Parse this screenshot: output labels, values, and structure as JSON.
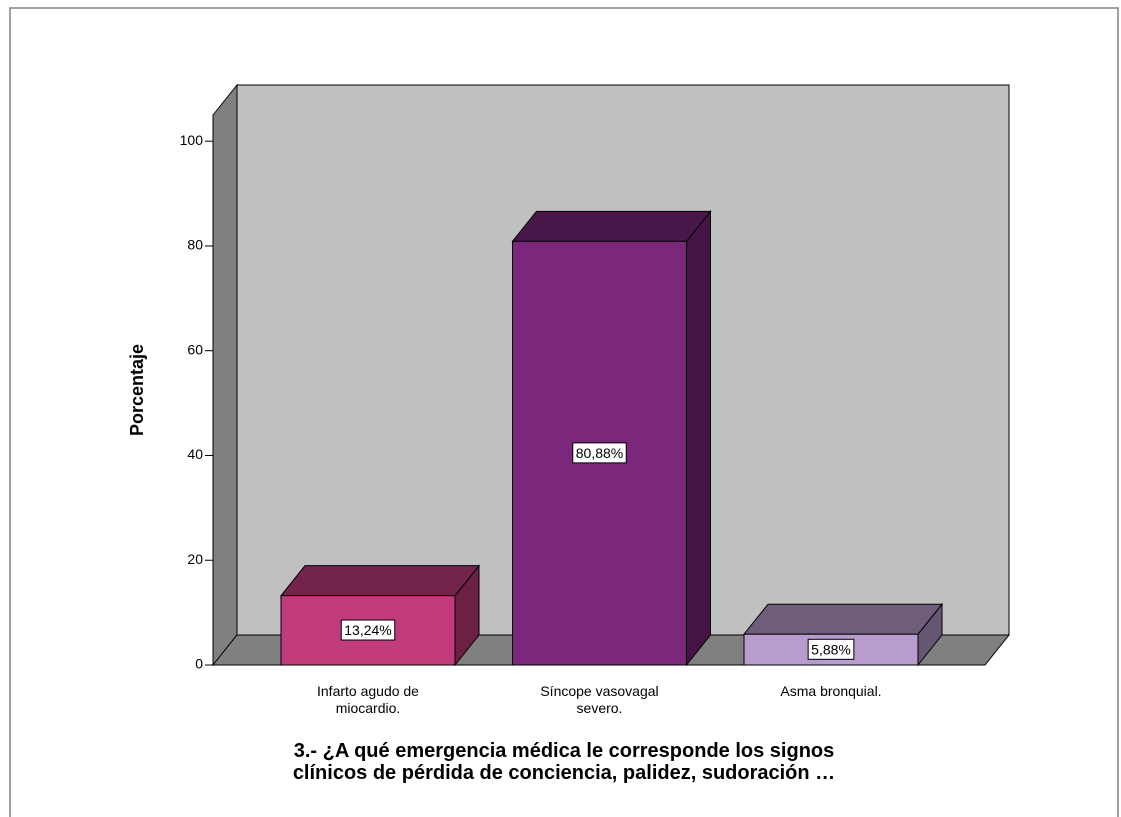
{
  "chart_data": {
    "type": "bar3d",
    "title": [
      "3.- ¿A qué emergencia médica le corresponde los signos",
      "clínicos de pérdida de conciencia, palidez, sudoración …"
    ],
    "ylabel": "Porcentaje",
    "categories": [
      "Infarto agudo de miocardio.",
      "Síncope vasovagal severo.",
      "Asma bronquial."
    ],
    "values": [
      13.24,
      80.88,
      5.88
    ],
    "value_labels": [
      "13,24%",
      "80,88%",
      "5,88%"
    ],
    "colors": [
      "#c23b7c",
      "#7b277b",
      "#b89cce"
    ],
    "ylim": [
      0,
      105
    ],
    "yticks": [
      0,
      20,
      40,
      60,
      80,
      100
    ]
  }
}
